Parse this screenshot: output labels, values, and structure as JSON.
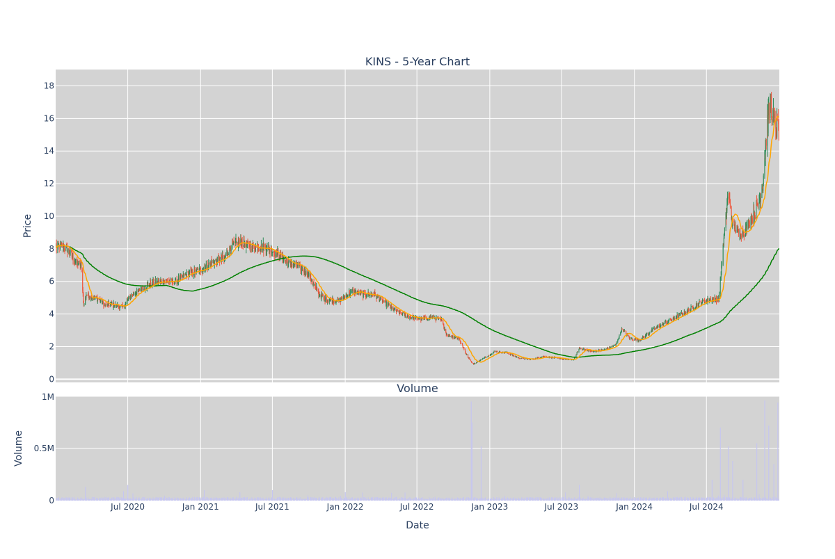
{
  "chart_data": {
    "type": "candlestick",
    "title": "KINS - 5-Year Chart",
    "price_panel": {
      "ylabel": "Price",
      "ylim": [
        -0.2,
        19
      ],
      "yticks": [
        0,
        2,
        4,
        6,
        8,
        10,
        12,
        14,
        16,
        18
      ],
      "grid": true,
      "background": "#d3d3d3",
      "increasing_color": "#2e8b57",
      "decreasing_color": "#ef553b",
      "ma_short_color": "#ffa500",
      "ma_long_color": "#008000",
      "close_points": [
        [
          "2020-01-02",
          8.1
        ],
        [
          "2020-01-20",
          8.2
        ],
        [
          "2020-02-05",
          7.8
        ],
        [
          "2020-02-20",
          7.2
        ],
        [
          "2020-03-05",
          7.0
        ],
        [
          "2020-03-12",
          4.5
        ],
        [
          "2020-03-18",
          5.2
        ],
        [
          "2020-04-01",
          5.0
        ],
        [
          "2020-04-20",
          4.9
        ],
        [
          "2020-05-05",
          4.5
        ],
        [
          "2020-05-20",
          4.6
        ],
        [
          "2020-06-05",
          4.5
        ],
        [
          "2020-06-20",
          4.4
        ],
        [
          "2020-07-05",
          5.0
        ],
        [
          "2020-08-01",
          5.5
        ],
        [
          "2020-09-01",
          5.9
        ],
        [
          "2020-10-01",
          6.0
        ],
        [
          "2020-11-01",
          6.0
        ],
        [
          "2020-12-01",
          6.5
        ],
        [
          "2021-01-01",
          6.7
        ],
        [
          "2021-02-01",
          7.2
        ],
        [
          "2021-03-01",
          7.4
        ],
        [
          "2021-03-20",
          8.2
        ],
        [
          "2021-04-15",
          8.4
        ],
        [
          "2021-05-15",
          8.1
        ],
        [
          "2021-06-15",
          8.1
        ],
        [
          "2021-07-05",
          7.8
        ],
        [
          "2021-07-25",
          7.5
        ],
        [
          "2021-08-10",
          7.1
        ],
        [
          "2021-09-01",
          7.0
        ],
        [
          "2021-10-01",
          6.4
        ],
        [
          "2021-10-25",
          5.3
        ],
        [
          "2021-11-10",
          4.9
        ],
        [
          "2021-12-15",
          4.8
        ],
        [
          "2022-01-01",
          5.1
        ],
        [
          "2022-01-20",
          5.4
        ],
        [
          "2022-02-15",
          5.2
        ],
        [
          "2022-03-15",
          5.2
        ],
        [
          "2022-04-15",
          4.6
        ],
        [
          "2022-05-15",
          4.1
        ],
        [
          "2022-06-15",
          3.8
        ],
        [
          "2022-07-15",
          3.7
        ],
        [
          "2022-08-10",
          3.8
        ],
        [
          "2022-09-01",
          3.6
        ],
        [
          "2022-09-15",
          2.7
        ],
        [
          "2022-10-15",
          2.5
        ],
        [
          "2022-11-01",
          1.6
        ],
        [
          "2022-11-20",
          0.9
        ],
        [
          "2022-12-10",
          1.2
        ],
        [
          "2022-12-25",
          1.4
        ],
        [
          "2023-01-15",
          1.7
        ],
        [
          "2023-02-15",
          1.6
        ],
        [
          "2023-03-15",
          1.3
        ],
        [
          "2023-04-15",
          1.2
        ],
        [
          "2023-05-15",
          1.4
        ],
        [
          "2023-06-15",
          1.3
        ],
        [
          "2023-07-15",
          1.2
        ],
        [
          "2023-08-01",
          1.2
        ],
        [
          "2023-08-15",
          1.9
        ],
        [
          "2023-09-15",
          1.7
        ],
        [
          "2023-10-15",
          1.8
        ],
        [
          "2023-11-15",
          2.1
        ],
        [
          "2023-12-01",
          3.1
        ],
        [
          "2023-12-20",
          2.5
        ],
        [
          "2024-01-15",
          2.4
        ],
        [
          "2024-02-15",
          3.0
        ],
        [
          "2024-03-15",
          3.4
        ],
        [
          "2024-04-15",
          3.8
        ],
        [
          "2024-05-15",
          4.2
        ],
        [
          "2024-06-15",
          4.7
        ],
        [
          "2024-07-15",
          4.9
        ],
        [
          "2024-08-01",
          4.9
        ],
        [
          "2024-08-10",
          7.5
        ],
        [
          "2024-08-25",
          11.5
        ],
        [
          "2024-09-05",
          9.5
        ],
        [
          "2024-09-20",
          9.0
        ],
        [
          "2024-10-05",
          9.0
        ],
        [
          "2024-10-20",
          9.8
        ],
        [
          "2024-11-05",
          10.5
        ],
        [
          "2024-11-20",
          12.0
        ],
        [
          "2024-12-01",
          15.5
        ],
        [
          "2024-12-10",
          17.0
        ],
        [
          "2024-12-20",
          15.5
        ],
        [
          "2024-12-31",
          15.3
        ]
      ]
    },
    "volume_panel": {
      "subtitle": "Volume",
      "ylabel": "Volume",
      "xlabel": "Date",
      "ylim": [
        0,
        1000000
      ],
      "yticks": [
        0,
        500000,
        1000000
      ],
      "ytick_labels": [
        "0",
        "0.5M",
        "1M"
      ],
      "grid": true,
      "background": "#d3d3d3",
      "bar_color": "#c6c6f0",
      "spikes": [
        [
          "2020-03-16",
          130000
        ],
        [
          "2020-06-20",
          90000
        ],
        [
          "2020-07-01",
          150000
        ],
        [
          "2021-01-10",
          100000
        ],
        [
          "2021-04-10",
          80000
        ],
        [
          "2021-07-01",
          100000
        ],
        [
          "2022-01-01",
          80000
        ],
        [
          "2022-11-15",
          950000
        ],
        [
          "2022-11-17",
          750000
        ],
        [
          "2022-12-10",
          520000
        ],
        [
          "2023-08-15",
          150000
        ],
        [
          "2024-07-15",
          200000
        ],
        [
          "2024-08-05",
          700000
        ],
        [
          "2024-08-25",
          520000
        ],
        [
          "2024-09-05",
          380000
        ],
        [
          "2024-10-01",
          200000
        ],
        [
          "2024-11-05",
          550000
        ],
        [
          "2024-11-25",
          960000
        ],
        [
          "2024-12-05",
          720000
        ],
        [
          "2024-12-18",
          350000
        ],
        [
          "2024-12-28",
          940000
        ]
      ]
    },
    "x_axis": {
      "range": [
        "2020-01-01",
        "2025-01-01"
      ],
      "ticks": [
        "2020-07-01",
        "2021-01-01",
        "2021-07-01",
        "2022-01-01",
        "2022-07-01",
        "2023-01-01",
        "2023-07-01",
        "2024-01-01",
        "2024-07-01"
      ],
      "tick_labels": [
        "Jul 2020",
        "Jan 2021",
        "Jul 2021",
        "Jan 2022",
        "Jul 2022",
        "Jan 2023",
        "Jul 2023",
        "Jan 2024",
        "Jul 2024"
      ]
    }
  }
}
